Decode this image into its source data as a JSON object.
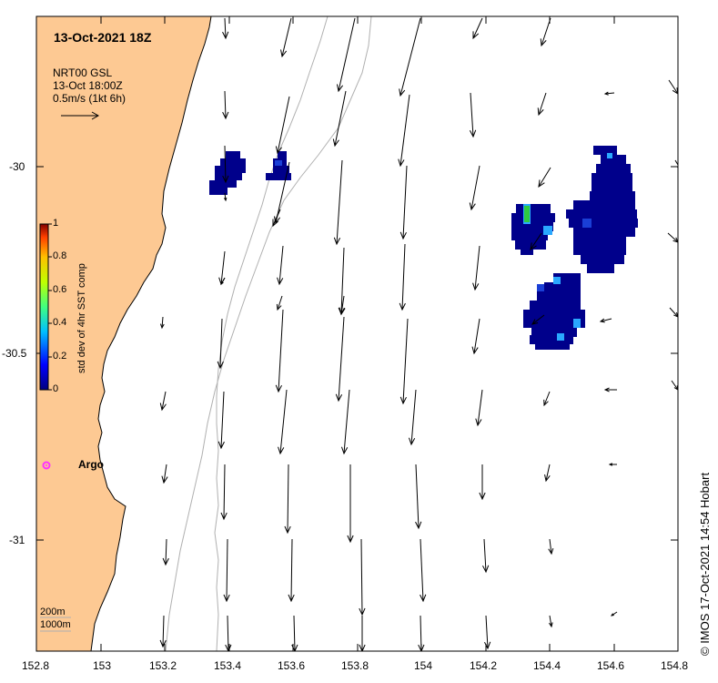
{
  "map": {
    "title": "13-Oct-2021 18Z",
    "legend_lines": [
      "NRT00 GSL",
      "13-Oct 18:00Z",
      "0.5m/s (1kt 6h)"
    ],
    "argo_label": "Argo",
    "depth_labels": [
      "200m",
      "1000m"
    ],
    "credit": "© IMOS 17-Oct-2021 14:54 Hobart",
    "colorbar_label": "std dev of 4hr SST comp",
    "colorbar_ticks": [
      "1",
      "0.8",
      "0.6",
      "0.4",
      "0.2",
      "0"
    ],
    "x_tick_labels": [
      "152.8",
      "153",
      "153.2",
      "153.4",
      "153.6",
      "153.8",
      "154",
      "154.2",
      "154.4",
      "154.6",
      "154.8"
    ],
    "y_tick_labels": [
      "-30",
      "-30.5",
      "-31"
    ],
    "colors": {
      "land": "#fdc993",
      "coastline": "#000000",
      "sst_low": "#00008b",
      "sst_mid": "#1a3fd6",
      "sst_cyan": "#2aa8ff",
      "sst_green": "#2ecc40",
      "argo_marker": "#ff33ff",
      "bathymetry": "#b0b0b0"
    },
    "icons": [
      "current-arrow-icon",
      "argo-float-marker-icon"
    ]
  }
}
